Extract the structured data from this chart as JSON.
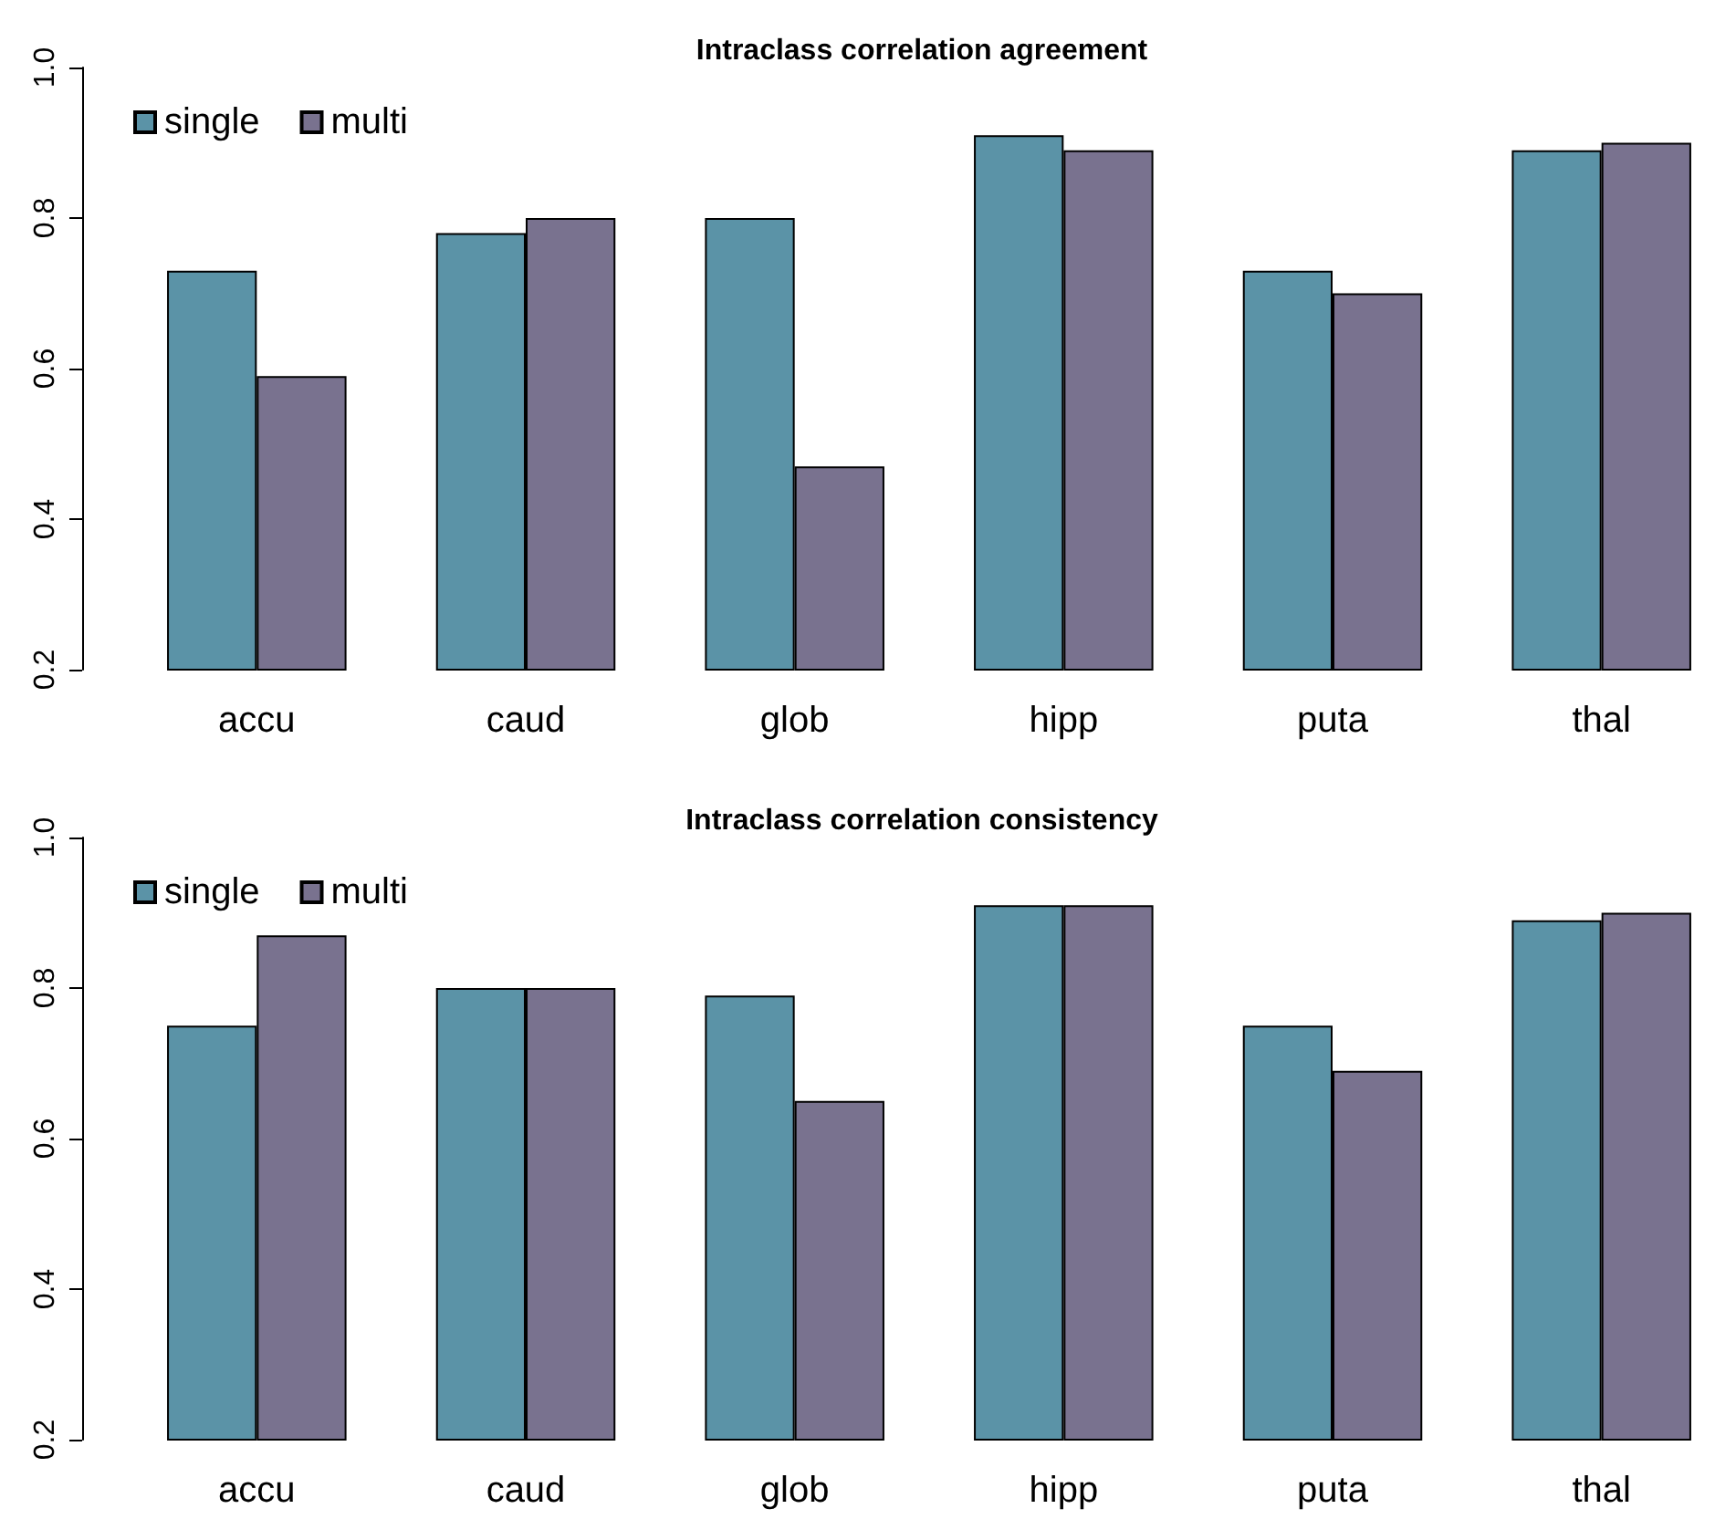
{
  "chart_data": [
    {
      "type": "bar",
      "title": "Intraclass correlation agreement",
      "categories": [
        "accu",
        "caud",
        "glob",
        "hipp",
        "puta",
        "thal"
      ],
      "series": [
        {
          "name": "single",
          "color": "#5b93a7",
          "values": [
            0.73,
            0.78,
            0.8,
            0.91,
            0.73,
            0.89
          ]
        },
        {
          "name": "multi",
          "color": "#79728f",
          "values": [
            0.59,
            0.8,
            0.47,
            0.89,
            0.7,
            0.9
          ]
        }
      ],
      "ylim": [
        0.2,
        1.0
      ],
      "yticks": [
        0.2,
        0.4,
        0.6,
        0.8,
        {
          "value": 1.0,
          "label": "1.0"
        }
      ],
      "grid": false,
      "legend": "top left"
    },
    {
      "type": "bar",
      "title": "Intraclass correlation consistency",
      "categories": [
        "accu",
        "caud",
        "glob",
        "hipp",
        "puta",
        "thal"
      ],
      "series": [
        {
          "name": "single",
          "color": "#5b93a7",
          "values": [
            0.75,
            0.8,
            0.79,
            0.91,
            0.75,
            0.89
          ]
        },
        {
          "name": "multi",
          "color": "#79728f",
          "values": [
            0.87,
            0.8,
            0.65,
            0.91,
            0.69,
            0.9
          ]
        }
      ],
      "ylim": [
        0.2,
        1.0
      ],
      "yticks": [
        0.2,
        0.4,
        0.6,
        0.8,
        {
          "value": 1.0,
          "label": "1.0"
        }
      ],
      "grid": false,
      "legend": "top left"
    }
  ]
}
